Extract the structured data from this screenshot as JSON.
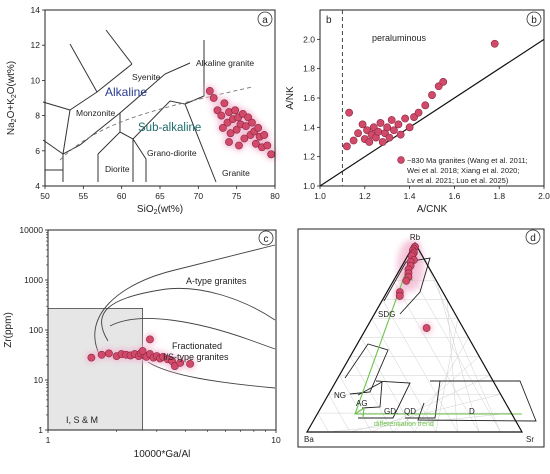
{
  "colors": {
    "point_fill": "#d24a6a",
    "point_stroke": "#8a2440",
    "halo": "#f2b8d2",
    "alkaline_text": "#2a3d8f",
    "subalkaline_text": "#1f6b6b",
    "shade": "#e6e6e6",
    "trend": "#6cc24a",
    "lines": "#333333"
  },
  "chart_data": [
    {
      "type": "scatter",
      "panel_label": "a",
      "xlabel": "SiO2(wt%)",
      "ylabel": "Na2O+K2O(wt%)",
      "xlim": [
        50,
        80
      ],
      "ylim": [
        4,
        14
      ],
      "xticks": [
        50,
        55,
        60,
        65,
        70,
        75,
        80
      ],
      "yticks": [
        4,
        6,
        8,
        10,
        12,
        14
      ],
      "annotations": [
        "Syenite",
        "Alkaline granite",
        "Alkaline",
        "Monzonite",
        "Sub-alkaline",
        "Diorite",
        "Grano-diorite",
        "Granite"
      ],
      "points": [
        {
          "x": 71.5,
          "y": 9.4
        },
        {
          "x": 72.0,
          "y": 9.0
        },
        {
          "x": 72.5,
          "y": 8.3
        },
        {
          "x": 73.0,
          "y": 8.0
        },
        {
          "x": 73.4,
          "y": 8.7
        },
        {
          "x": 73.8,
          "y": 7.6
        },
        {
          "x": 74.0,
          "y": 8.2
        },
        {
          "x": 74.2,
          "y": 7.0
        },
        {
          "x": 74.5,
          "y": 7.8
        },
        {
          "x": 74.8,
          "y": 8.3
        },
        {
          "x": 75.0,
          "y": 7.2
        },
        {
          "x": 75.2,
          "y": 7.9
        },
        {
          "x": 75.5,
          "y": 7.5
        },
        {
          "x": 75.8,
          "y": 8.1
        },
        {
          "x": 76.0,
          "y": 6.7
        },
        {
          "x": 76.2,
          "y": 7.4
        },
        {
          "x": 76.5,
          "y": 7.9
        },
        {
          "x": 76.8,
          "y": 6.9
        },
        {
          "x": 77.0,
          "y": 7.6
        },
        {
          "x": 77.3,
          "y": 7.1
        },
        {
          "x": 77.5,
          "y": 6.4
        },
        {
          "x": 77.8,
          "y": 7.3
        },
        {
          "x": 78.0,
          "y": 6.8
        },
        {
          "x": 78.3,
          "y": 6.2
        },
        {
          "x": 78.6,
          "y": 6.9
        },
        {
          "x": 79.0,
          "y": 6.3
        },
        {
          "x": 79.5,
          "y": 5.8
        },
        {
          "x": 74.0,
          "y": 6.5
        },
        {
          "x": 75.3,
          "y": 6.3
        },
        {
          "x": 73.2,
          "y": 7.3
        }
      ]
    },
    {
      "type": "scatter",
      "panel_label": "b",
      "corner_label": "b",
      "xlabel": "A/CNK",
      "ylabel": "A/NK",
      "xlim": [
        1.0,
        2.0
      ],
      "ylim": [
        1.0,
        2.2
      ],
      "xticks": [
        1.0,
        1.2,
        1.4,
        1.6,
        1.8,
        2.0
      ],
      "yticks": [
        1.0,
        1.2,
        1.4,
        1.6,
        1.8,
        2.0
      ],
      "annotations": [
        "peraluminous"
      ],
      "legend": "~830 Ma granites (Wang et al. 2011; Wei et al. 2018; Xiang et al. 2020; Lv et al. 2021; Luo et al. 2025)",
      "legend_lines": [
        "~830 Ma granites (Wang et al. 2011;",
        "Wei et al. 2018; Xiang et al. 2020;",
        "Lv et al. 2021; Luo et al. 2025)"
      ],
      "points": [
        {
          "x": 1.12,
          "y": 1.27
        },
        {
          "x": 1.13,
          "y": 1.5
        },
        {
          "x": 1.15,
          "y": 1.31
        },
        {
          "x": 1.17,
          "y": 1.36
        },
        {
          "x": 1.19,
          "y": 1.42
        },
        {
          "x": 1.2,
          "y": 1.32
        },
        {
          "x": 1.21,
          "y": 1.38
        },
        {
          "x": 1.22,
          "y": 1.3
        },
        {
          "x": 1.23,
          "y": 1.35
        },
        {
          "x": 1.24,
          "y": 1.4
        },
        {
          "x": 1.25,
          "y": 1.33
        },
        {
          "x": 1.26,
          "y": 1.37
        },
        {
          "x": 1.27,
          "y": 1.43
        },
        {
          "x": 1.28,
          "y": 1.3
        },
        {
          "x": 1.29,
          "y": 1.36
        },
        {
          "x": 1.3,
          "y": 1.4
        },
        {
          "x": 1.31,
          "y": 1.33
        },
        {
          "x": 1.32,
          "y": 1.45
        },
        {
          "x": 1.33,
          "y": 1.38
        },
        {
          "x": 1.35,
          "y": 1.42
        },
        {
          "x": 1.36,
          "y": 1.35
        },
        {
          "x": 1.38,
          "y": 1.46
        },
        {
          "x": 1.4,
          "y": 1.4
        },
        {
          "x": 1.42,
          "y": 1.47
        },
        {
          "x": 1.44,
          "y": 1.5
        },
        {
          "x": 1.47,
          "y": 1.55
        },
        {
          "x": 1.5,
          "y": 1.62
        },
        {
          "x": 1.53,
          "y": 1.68
        },
        {
          "x": 1.55,
          "y": 1.71
        },
        {
          "x": 1.78,
          "y": 1.97
        }
      ]
    },
    {
      "type": "scatter",
      "panel_label": "c",
      "xlabel": "10000*Ga/Al",
      "ylabel": "Zr(ppm)",
      "xscale": "log",
      "yscale": "log",
      "xlim": [
        1,
        10
      ],
      "ylim": [
        1,
        10000
      ],
      "xticks": [
        1,
        10
      ],
      "yticks": [
        1,
        10,
        100,
        1000,
        10000
      ],
      "annotations": [
        "A-type granites",
        "Fractionated",
        "I/S-type granites",
        "I, S & M"
      ],
      "points": [
        {
          "x": 1.55,
          "y": 28
        },
        {
          "x": 1.72,
          "y": 32
        },
        {
          "x": 1.85,
          "y": 34
        },
        {
          "x": 2.0,
          "y": 30
        },
        {
          "x": 2.1,
          "y": 33
        },
        {
          "x": 2.2,
          "y": 32
        },
        {
          "x": 2.3,
          "y": 31
        },
        {
          "x": 2.4,
          "y": 33
        },
        {
          "x": 2.5,
          "y": 30
        },
        {
          "x": 2.55,
          "y": 34
        },
        {
          "x": 2.65,
          "y": 31
        },
        {
          "x": 2.7,
          "y": 29
        },
        {
          "x": 2.8,
          "y": 33
        },
        {
          "x": 2.9,
          "y": 28
        },
        {
          "x": 3.0,
          "y": 30
        },
        {
          "x": 3.1,
          "y": 27
        },
        {
          "x": 3.2,
          "y": 29
        },
        {
          "x": 3.35,
          "y": 26
        },
        {
          "x": 3.5,
          "y": 24
        },
        {
          "x": 3.6,
          "y": 19
        },
        {
          "x": 3.8,
          "y": 22
        },
        {
          "x": 4.2,
          "y": 21
        },
        {
          "x": 2.8,
          "y": 65
        },
        {
          "x": 2.6,
          "y": 38
        }
      ]
    },
    {
      "type": "scatter",
      "panel_label": "d",
      "subtype": "ternary",
      "vertices": [
        "Rb",
        "Ba",
        "Sr"
      ],
      "annotations": [
        "SDG",
        "NG",
        "AG",
        "GD.",
        "QD",
        "D",
        "differentiation trend"
      ],
      "points": [
        {
          "rb": 0.98,
          "ba": 0.01,
          "sr": 0.01
        },
        {
          "rb": 0.97,
          "ba": 0.02,
          "sr": 0.01
        },
        {
          "rb": 0.96,
          "ba": 0.03,
          "sr": 0.01
        },
        {
          "rb": 0.95,
          "ba": 0.03,
          "sr": 0.02
        },
        {
          "rb": 0.94,
          "ba": 0.04,
          "sr": 0.02
        },
        {
          "rb": 0.93,
          "ba": 0.05,
          "sr": 0.02
        },
        {
          "rb": 0.91,
          "ba": 0.05,
          "sr": 0.04
        },
        {
          "rb": 0.9,
          "ba": 0.07,
          "sr": 0.03
        },
        {
          "rb": 0.88,
          "ba": 0.08,
          "sr": 0.04
        },
        {
          "rb": 0.86,
          "ba": 0.1,
          "sr": 0.04
        },
        {
          "rb": 0.84,
          "ba": 0.11,
          "sr": 0.05
        },
        {
          "rb": 0.82,
          "ba": 0.12,
          "sr": 0.06
        },
        {
          "rb": 0.8,
          "ba": 0.14,
          "sr": 0.06
        },
        {
          "rb": 0.74,
          "ba": 0.2,
          "sr": 0.06
        },
        {
          "rb": 0.72,
          "ba": 0.21,
          "sr": 0.07
        },
        {
          "rb": 0.55,
          "ba": 0.17,
          "sr": 0.28
        }
      ]
    }
  ]
}
